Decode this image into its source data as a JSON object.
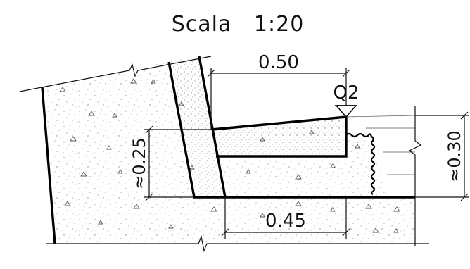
{
  "title": "Scala   1:20",
  "dimensions": {
    "top_width": "0.50",
    "bottom_width": "0.45",
    "left_height": "≈0.25",
    "right_height": "≈0.30"
  },
  "level_marker": "Q2",
  "colors": {
    "line": "#000000",
    "concrete_fill": "#ffffff",
    "speckle": "#7a7a7a"
  }
}
